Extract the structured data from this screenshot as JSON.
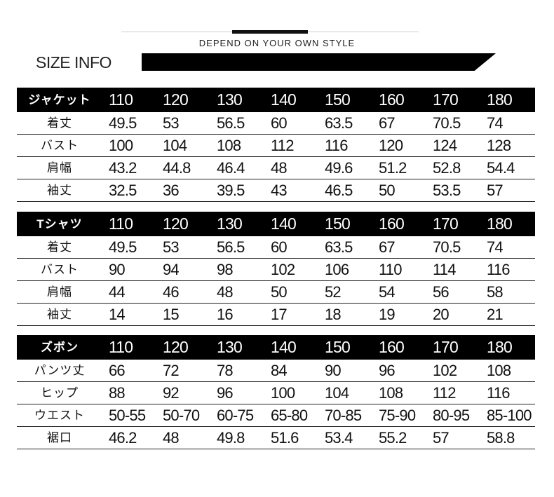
{
  "header": {
    "slogan": "DEPEND ON YOUR OWN STYLE",
    "title": "SIZE INFO"
  },
  "tables": [
    {
      "name": "ジャケット",
      "sizes": [
        "110",
        "120",
        "130",
        "140",
        "150",
        "160",
        "170",
        "180"
      ],
      "rows": [
        {
          "label": "着丈",
          "values": [
            "49.5",
            "53",
            "56.5",
            "60",
            "63.5",
            "67",
            "70.5",
            "74"
          ]
        },
        {
          "label": "バスト",
          "values": [
            "100",
            "104",
            "108",
            "112",
            "116",
            "120",
            "124",
            "128"
          ]
        },
        {
          "label": "肩幅",
          "values": [
            "43.2",
            "44.8",
            "46.4",
            "48",
            "49.6",
            "51.2",
            "52.8",
            "54.4"
          ]
        },
        {
          "label": "袖丈",
          "values": [
            "32.5",
            "36",
            "39.5",
            "43",
            "46.5",
            "50",
            "53.5",
            "57"
          ]
        }
      ]
    },
    {
      "name": "Tシャツ",
      "sizes": [
        "110",
        "120",
        "130",
        "140",
        "150",
        "160",
        "170",
        "180"
      ],
      "rows": [
        {
          "label": "着丈",
          "values": [
            "49.5",
            "53",
            "56.5",
            "60",
            "63.5",
            "67",
            "70.5",
            "74"
          ]
        },
        {
          "label": "バスト",
          "values": [
            "90",
            "94",
            "98",
            "102",
            "106",
            "110",
            "114",
            "116"
          ]
        },
        {
          "label": "肩幅",
          "values": [
            "44",
            "46",
            "48",
            "50",
            "52",
            "54",
            "56",
            "58"
          ]
        },
        {
          "label": "袖丈",
          "values": [
            "14",
            "15",
            "16",
            "17",
            "18",
            "19",
            "20",
            "21"
          ]
        }
      ]
    },
    {
      "name": "ズボン",
      "sizes": [
        "110",
        "120",
        "130",
        "140",
        "150",
        "160",
        "170",
        "180"
      ],
      "rows": [
        {
          "label": "パンツ丈",
          "values": [
            "66",
            "72",
            "78",
            "84",
            "90",
            "96",
            "102",
            "108"
          ]
        },
        {
          "label": "ヒップ",
          "values": [
            "88",
            "92",
            "96",
            "100",
            "104",
            "108",
            "112",
            "116"
          ]
        },
        {
          "label": "ウエスト",
          "values": [
            "50-55",
            "50-70",
            "60-75",
            "65-80",
            "70-85",
            "75-90",
            "80-95",
            "85-100"
          ]
        },
        {
          "label": "裾口",
          "values": [
            "46.2",
            "48",
            "49.8",
            "51.6",
            "53.4",
            "55.2",
            "57",
            "58.8"
          ]
        }
      ]
    }
  ]
}
